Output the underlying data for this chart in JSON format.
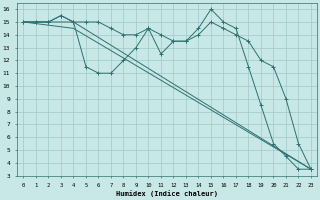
{
  "background_color": "#c8e8e8",
  "grid_color": "#a0c8c8",
  "line_color": "#2e7070",
  "xlabel": "Humidex (Indice chaleur)",
  "xlim": [
    -0.5,
    23.5
  ],
  "ylim": [
    3,
    16.5
  ],
  "xtick_vals": [
    0,
    1,
    2,
    3,
    4,
    5,
    6,
    7,
    8,
    9,
    10,
    11,
    12,
    13,
    14,
    15,
    16,
    17,
    18,
    19,
    20,
    21,
    22,
    23
  ],
  "xtick_labels": [
    "0",
    "1",
    "2",
    "3",
    "4",
    "5",
    "6",
    "7",
    "8",
    "9",
    "10",
    "11",
    "12",
    "13",
    "14",
    "15",
    "16",
    "17",
    "18",
    "19",
    "20",
    "21",
    "22",
    "23"
  ],
  "ytick_vals": [
    3,
    4,
    5,
    6,
    7,
    8,
    9,
    10,
    11,
    12,
    13,
    14,
    15,
    16
  ],
  "ytick_labels": [
    "3",
    "4",
    "5",
    "6",
    "7",
    "8",
    "9",
    "10",
    "11",
    "12",
    "13",
    "14",
    "15",
    "16"
  ],
  "series": [
    {
      "x": [
        0,
        1,
        2,
        3,
        4,
        5,
        6,
        7,
        8,
        9,
        10,
        11,
        12,
        13,
        14,
        15,
        16,
        17,
        18,
        19,
        20,
        21,
        22,
        23
      ],
      "y": [
        15,
        15,
        15,
        15.5,
        15,
        11.5,
        11,
        11,
        12,
        13,
        14.5,
        12.5,
        13.5,
        13.5,
        14.5,
        16,
        15,
        14.5,
        11.5,
        8.5,
        5.5,
        4.5,
        3.5,
        3.5
      ],
      "marker": true
    },
    {
      "x": [
        0,
        1,
        2,
        3,
        4,
        5,
        6,
        7,
        8,
        9,
        10,
        11,
        12,
        13,
        14,
        15,
        16,
        17,
        18,
        19,
        20,
        21,
        22,
        23
      ],
      "y": [
        15,
        15,
        15,
        15.5,
        15,
        15,
        15,
        14.5,
        14,
        14,
        14.5,
        14,
        13.5,
        13.5,
        14,
        15,
        14.5,
        14,
        13.5,
        12,
        11.5,
        9,
        5.5,
        3.5
      ],
      "marker": true
    },
    {
      "x": [
        0,
        4,
        23
      ],
      "y": [
        15,
        15,
        3.5
      ],
      "marker": false
    },
    {
      "x": [
        0,
        4,
        23
      ],
      "y": [
        15,
        14.5,
        3.5
      ],
      "marker": false
    }
  ]
}
